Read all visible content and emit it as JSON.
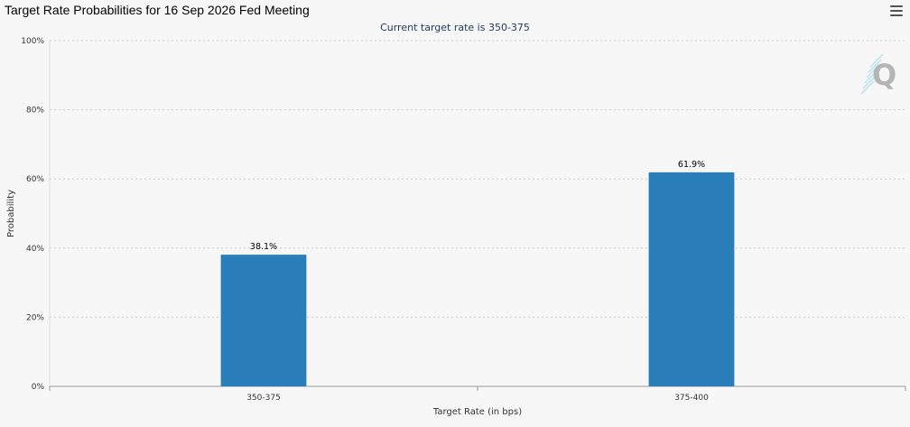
{
  "header": {
    "title": "Target Rate Probabilities for 16 Sep 2026 Fed Meeting",
    "menu_icon": "hamburger-menu-icon"
  },
  "watermark": {
    "glyph": "Q",
    "icon": "quikstrike-logo-icon"
  },
  "colors": {
    "bar": "#2a7fba",
    "grid": "#cccccc",
    "axis": "#999999",
    "background": "#f7f7f7"
  },
  "chart_data": {
    "type": "bar",
    "subtitle": "Current target rate is 350-375",
    "xlabel": "Target Rate (in bps)",
    "ylabel": "Probability",
    "categories": [
      "350-375",
      "375-400"
    ],
    "values": [
      38.1,
      61.9
    ],
    "data_labels": [
      "38.1%",
      "61.9%"
    ],
    "ylim": [
      0,
      100
    ],
    "yticks": [
      0,
      20,
      40,
      60,
      80,
      100
    ],
    "ytick_labels": [
      "0%",
      "20%",
      "40%",
      "60%",
      "80%",
      "100%"
    ],
    "grid": true,
    "legend": "none"
  }
}
